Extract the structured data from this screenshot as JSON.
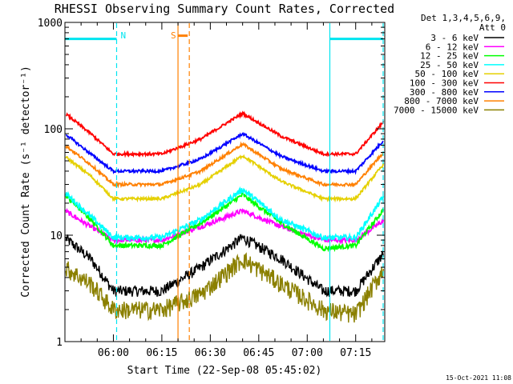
{
  "chart_data": {
    "type": "line",
    "title": "RHESSI Observing Summary Count Rates, Corrected",
    "ylabel": "Corrected Count Rate (s⁻¹ detector⁻¹)",
    "xlabel": "Start Time (22-Sep-08 05:45:02)",
    "yscale": "log",
    "ylim": [
      1,
      1000
    ],
    "xlim_minutes_after_05_45_02": [
      0,
      99
    ],
    "y_ticks": [
      {
        "value": 1,
        "label": "1"
      },
      {
        "value": 10,
        "label": "10"
      },
      {
        "value": 100,
        "label": "100"
      },
      {
        "value": 1000,
        "label": "1000"
      }
    ],
    "x_ticks": [
      {
        "minute": 15,
        "label": "06:00"
      },
      {
        "minute": 30,
        "label": "06:15"
      },
      {
        "minute": 45,
        "label": "06:30"
      },
      {
        "minute": 60,
        "label": "06:45"
      },
      {
        "minute": 75,
        "label": "07:00"
      },
      {
        "minute": 90,
        "label": "07:15"
      }
    ],
    "legend": {
      "placement": "right",
      "header": [
        "Det 1,3,4,5,6,9,",
        "Att 0"
      ]
    },
    "markers": [
      {
        "label": "N",
        "color": "#00e5f0",
        "minute": 16,
        "bar_from_minute": 0,
        "bar_to_minute": 16,
        "level": 700
      },
      {
        "label": "",
        "color": "#00e5f0",
        "minute": 82,
        "bar_from_minute": 82,
        "bar_to_minute": 98.5,
        "level": 700
      },
      {
        "label": "",
        "color": "#00e5f0",
        "minute": 98.5
      },
      {
        "label": "S",
        "color": "#ff8000",
        "minute": 35,
        "bar_from_minute": 35,
        "bar_to_minute": 38,
        "level": 750
      },
      {
        "label": "",
        "color": "#ff8000",
        "minute": 38.5
      }
    ],
    "series_points_minutes": [
      0,
      8,
      15,
      30,
      42,
      55,
      67,
      80,
      90,
      99
    ],
    "series": [
      {
        "name": "3 - 6 keV",
        "color": "#000000",
        "noise": 0.12,
        "values": [
          9.5,
          6,
          3,
          3,
          5,
          9.5,
          6,
          3,
          3,
          7
        ]
      },
      {
        "name": "6 - 12 keV",
        "color": "#ff00ff",
        "noise": 0.05,
        "values": [
          17,
          12,
          9,
          9,
          12,
          17,
          12,
          9,
          9,
          14
        ]
      },
      {
        "name": "12 - 25 keV",
        "color": "#00ff00",
        "noise": 0.05,
        "values": [
          24,
          14,
          8,
          8,
          13,
          24,
          13,
          7.5,
          8,
          18
        ]
      },
      {
        "name": "25 - 50 keV",
        "color": "#00ffff",
        "noise": 0.06,
        "values": [
          25,
          15,
          9.5,
          9.5,
          14,
          27,
          14,
          9.5,
          9.5,
          24
        ]
      },
      {
        "name": "50 - 100 keV",
        "color": "#e5d000",
        "noise": 0.03,
        "values": [
          55,
          36,
          22,
          22,
          30,
          56,
          32,
          22,
          22,
          48
        ]
      },
      {
        "name": "100 - 300 keV",
        "color": "#ff0000",
        "noise": 0.03,
        "values": [
          140,
          90,
          58,
          58,
          80,
          140,
          85,
          58,
          58,
          120
        ]
      },
      {
        "name": "300 - 800 keV",
        "color": "#0000ff",
        "noise": 0.03,
        "values": [
          90,
          58,
          40,
          40,
          52,
          90,
          55,
          40,
          40,
          80
        ]
      },
      {
        "name": "800 - 7000 keV",
        "color": "#ff8000",
        "noise": 0.03,
        "values": [
          70,
          46,
          30,
          30,
          40,
          72,
          42,
          30,
          30,
          62
        ]
      },
      {
        "name": "7000 - 15000 keV",
        "color": "#8b8000",
        "noise": 0.2,
        "values": [
          5,
          3.5,
          2,
          2,
          2.8,
          6,
          3.5,
          2,
          1.8,
          5
        ]
      }
    ]
  },
  "footer": {
    "timestamp": "15-Oct-2021 11:08"
  }
}
